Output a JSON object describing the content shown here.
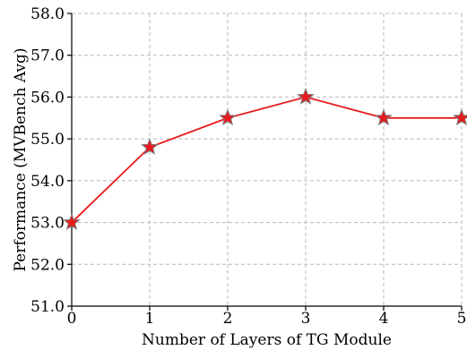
{
  "chart_data": {
    "type": "line",
    "title": "",
    "xlabel": "Number of Layers of TG Module",
    "ylabel": "Performance (MVBench Avg)",
    "x": [
      0,
      1,
      2,
      3,
      4,
      5
    ],
    "series": [
      {
        "values": [
          53.0,
          54.8,
          55.5,
          56.0,
          55.5,
          55.5
        ],
        "color": "#e8191c",
        "marker": "star",
        "marker_edge_color": "#7a7a7a"
      }
    ],
    "xlim": [
      0,
      5
    ],
    "ylim": [
      51.0,
      58.0
    ],
    "x_ticks": [
      0,
      1,
      2,
      3,
      4,
      5
    ],
    "x_tick_labels": [
      "0",
      "1",
      "2",
      "3",
      "4",
      "5"
    ],
    "y_ticks": [
      51.0,
      52.0,
      53.0,
      54.0,
      55.0,
      56.0,
      57.0,
      58.0
    ],
    "y_tick_labels": [
      "51.0",
      "52.0",
      "53.0",
      "54.0",
      "55.0",
      "56.0",
      "57.0",
      "58.0"
    ],
    "grid": true,
    "legend": false
  }
}
